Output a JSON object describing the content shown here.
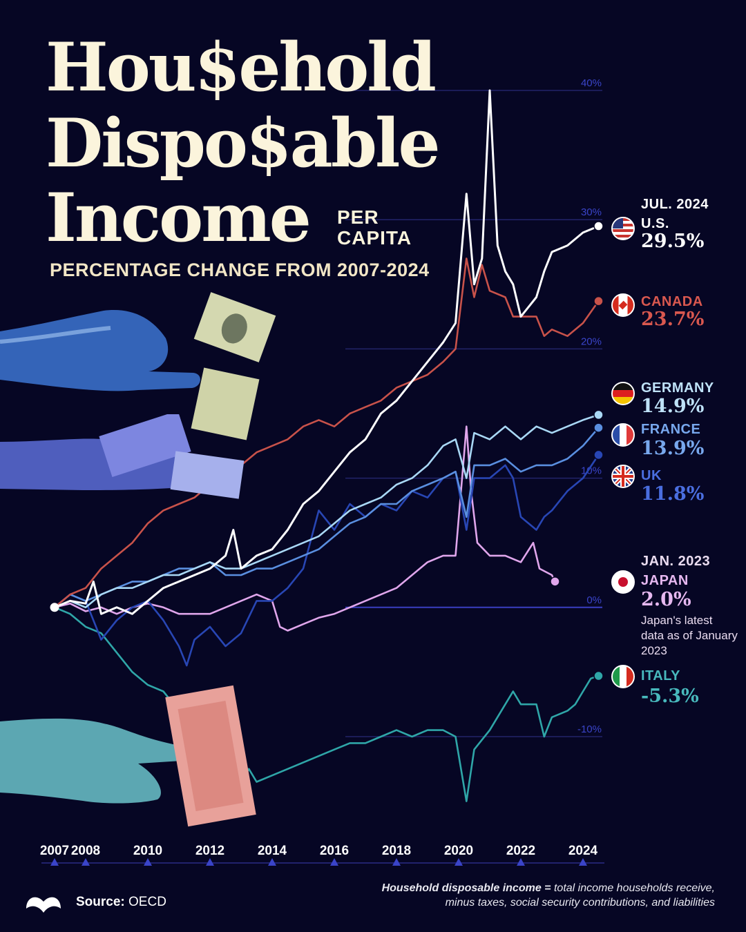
{
  "title": {
    "line1": "Hou$ehold",
    "line2": "Dispo$able",
    "line3": "Income",
    "per_capita": [
      "PER",
      "CAPITA"
    ],
    "subtitle": "PERCENTAGE CHANGE FROM 2007-2024"
  },
  "colors": {
    "background": "#060624",
    "us": "#ffffff",
    "canada": "#c8524a",
    "germany": "#a9d8f5",
    "france": "#5a8fe0",
    "uk": "#2846b4",
    "japan": "#e0a6ec",
    "italy": "#2fa6a8",
    "title": "#fbf4dc"
  },
  "labels": {
    "us": {
      "date": "JUL. 2024",
      "name": "U.S.",
      "value": "29.5%",
      "flag": "us-flag-icon"
    },
    "canada": {
      "name": "CANADA",
      "value": "23.7%",
      "flag": "canada-flag-icon"
    },
    "germany": {
      "name": "GERMANY",
      "value": "14.9%",
      "flag": "germany-flag-icon"
    },
    "france": {
      "name": "FRANCE",
      "value": "13.9%",
      "flag": "france-flag-icon"
    },
    "uk": {
      "name": "UK",
      "value": "11.8%",
      "flag": "uk-flag-icon"
    },
    "japan": {
      "date": "JAN. 2023",
      "name": "JAPAN",
      "value": "2.0%",
      "note": "Japan's latest data as of January 2023",
      "flag": "japan-flag-icon"
    },
    "italy": {
      "name": "ITALY",
      "value": "-5.3%",
      "flag": "italy-flag-icon"
    }
  },
  "footer": {
    "source_label": "Source:",
    "source": "OECD",
    "definition_term": "Household disposable income =",
    "definition_text": "total income households receive,",
    "definition_line2": "minus taxes, social security contributions, and liabilities"
  },
  "chart_data": {
    "type": "line",
    "xlim": [
      2007,
      2024.6
    ],
    "ylim": [
      -15,
      43
    ],
    "y_ticks": [
      -10,
      0,
      10,
      20,
      30,
      40
    ],
    "y_tick_labels": [
      "-10%",
      "0%",
      "10%",
      "20%",
      "30%",
      "40%"
    ],
    "x_ticks": [
      2007,
      2008,
      2010,
      2012,
      2014,
      2016,
      2018,
      2020,
      2022,
      2024
    ],
    "x_tick_labels": [
      "2007",
      "2008",
      "2010",
      "2012",
      "2014",
      "2016",
      "2018",
      "2020",
      "2022",
      "2024"
    ],
    "grid": true,
    "series": [
      {
        "key": "italy",
        "name": "ITALY",
        "points": [
          [
            2007,
            0
          ],
          [
            2007.5,
            -0.5
          ],
          [
            2008,
            -1.5
          ],
          [
            2008.5,
            -2
          ],
          [
            2009,
            -3.5
          ],
          [
            2009.5,
            -5
          ],
          [
            2010,
            -6
          ],
          [
            2010.5,
            -6.5
          ],
          [
            2011,
            -8
          ],
          [
            2011.5,
            -9
          ],
          [
            2012,
            -10.5
          ],
          [
            2012.5,
            -12
          ],
          [
            2013,
            -13.5
          ],
          [
            2013.25,
            -12.5
          ],
          [
            2013.5,
            -13.5
          ],
          [
            2014,
            -13
          ],
          [
            2014.5,
            -12.5
          ],
          [
            2015,
            -12
          ],
          [
            2015.5,
            -11.5
          ],
          [
            2016,
            -11
          ],
          [
            2016.5,
            -10.5
          ],
          [
            2017,
            -10.5
          ],
          [
            2017.5,
            -10
          ],
          [
            2018,
            -9.5
          ],
          [
            2018.5,
            -10
          ],
          [
            2019,
            -9.5
          ],
          [
            2019.5,
            -9.5
          ],
          [
            2019.9,
            -10
          ],
          [
            2020.25,
            -15
          ],
          [
            2020.5,
            -11
          ],
          [
            2021,
            -9.5
          ],
          [
            2021.5,
            -7.5
          ],
          [
            2021.75,
            -6.5
          ],
          [
            2022,
            -7.5
          ],
          [
            2022.5,
            -7.5
          ],
          [
            2022.75,
            -10
          ],
          [
            2023,
            -8.5
          ],
          [
            2023.5,
            -8
          ],
          [
            2023.75,
            -7.5
          ],
          [
            2024,
            -6.5
          ],
          [
            2024.25,
            -5.5
          ],
          [
            2024.5,
            -5.3
          ]
        ]
      },
      {
        "key": "japan",
        "name": "JAPAN",
        "points": [
          [
            2007,
            0
          ],
          [
            2007.5,
            0.3
          ],
          [
            2008,
            -0.3
          ],
          [
            2008.5,
            0
          ],
          [
            2009,
            -0.5
          ],
          [
            2009.5,
            0
          ],
          [
            2010,
            0.3
          ],
          [
            2010.5,
            0
          ],
          [
            2011,
            -0.5
          ],
          [
            2011.5,
            -0.5
          ],
          [
            2012,
            -0.5
          ],
          [
            2012.5,
            0
          ],
          [
            2013,
            0.5
          ],
          [
            2013.5,
            1
          ],
          [
            2014,
            0.5
          ],
          [
            2014.25,
            -1.5
          ],
          [
            2014.5,
            -1.8
          ],
          [
            2015,
            -1.3
          ],
          [
            2015.5,
            -0.8
          ],
          [
            2016,
            -0.5
          ],
          [
            2016.5,
            0
          ],
          [
            2017,
            0.5
          ],
          [
            2017.5,
            1
          ],
          [
            2018,
            1.5
          ],
          [
            2018.5,
            2.5
          ],
          [
            2019,
            3.5
          ],
          [
            2019.5,
            4
          ],
          [
            2019.9,
            4
          ],
          [
            2020.25,
            14
          ],
          [
            2020.4,
            9
          ],
          [
            2020.6,
            5
          ],
          [
            2021,
            4
          ],
          [
            2021.5,
            4
          ],
          [
            2022,
            3.5
          ],
          [
            2022.4,
            5
          ],
          [
            2022.6,
            3
          ],
          [
            2023,
            2.5
          ],
          [
            2023.1,
            2
          ]
        ]
      },
      {
        "key": "uk",
        "name": "UK",
        "points": [
          [
            2007,
            0
          ],
          [
            2007.5,
            1
          ],
          [
            2008,
            0.5
          ],
          [
            2008.5,
            -2.5
          ],
          [
            2009,
            -1
          ],
          [
            2009.5,
            0
          ],
          [
            2010,
            0.5
          ],
          [
            2010.5,
            -1
          ],
          [
            2011,
            -3
          ],
          [
            2011.25,
            -4.5
          ],
          [
            2011.5,
            -2.5
          ],
          [
            2012,
            -1.5
          ],
          [
            2012.5,
            -3
          ],
          [
            2013,
            -2
          ],
          [
            2013.5,
            0.5
          ],
          [
            2014,
            0.5
          ],
          [
            2014.5,
            1.5
          ],
          [
            2015,
            3
          ],
          [
            2015.5,
            7.5
          ],
          [
            2016,
            6
          ],
          [
            2016.5,
            8
          ],
          [
            2017,
            7
          ],
          [
            2017.5,
            8
          ],
          [
            2018,
            7.5
          ],
          [
            2018.5,
            9
          ],
          [
            2019,
            8.5
          ],
          [
            2019.5,
            10
          ],
          [
            2019.9,
            10.5
          ],
          [
            2020.25,
            6
          ],
          [
            2020.5,
            10
          ],
          [
            2021,
            10
          ],
          [
            2021.5,
            11
          ],
          [
            2021.75,
            10
          ],
          [
            2022,
            7
          ],
          [
            2022.5,
            6
          ],
          [
            2022.75,
            7
          ],
          [
            2023,
            7.5
          ],
          [
            2023.5,
            9
          ],
          [
            2024,
            10
          ],
          [
            2024.5,
            11.8
          ]
        ]
      },
      {
        "key": "france",
        "name": "FRANCE",
        "points": [
          [
            2007,
            0
          ],
          [
            2007.5,
            1
          ],
          [
            2008,
            0.5
          ],
          [
            2008.5,
            1
          ],
          [
            2009,
            1.5
          ],
          [
            2009.5,
            2
          ],
          [
            2010,
            2
          ],
          [
            2010.5,
            2.5
          ],
          [
            2011,
            3
          ],
          [
            2011.5,
            3
          ],
          [
            2012,
            3.5
          ],
          [
            2012.5,
            2.5
          ],
          [
            2013,
            2.5
          ],
          [
            2013.5,
            3
          ],
          [
            2014,
            3
          ],
          [
            2014.5,
            3.5
          ],
          [
            2015,
            4
          ],
          [
            2015.5,
            4.5
          ],
          [
            2016,
            5.5
          ],
          [
            2016.5,
            6.5
          ],
          [
            2017,
            7
          ],
          [
            2017.5,
            8
          ],
          [
            2018,
            8
          ],
          [
            2018.5,
            9
          ],
          [
            2019,
            9.5
          ],
          [
            2019.5,
            10
          ],
          [
            2019.9,
            10.5
          ],
          [
            2020.25,
            7
          ],
          [
            2020.5,
            11
          ],
          [
            2021,
            11
          ],
          [
            2021.5,
            11.5
          ],
          [
            2022,
            10.5
          ],
          [
            2022.5,
            11
          ],
          [
            2023,
            11
          ],
          [
            2023.5,
            11.5
          ],
          [
            2024,
            12.5
          ],
          [
            2024.5,
            13.9
          ]
        ]
      },
      {
        "key": "germany",
        "name": "GERMANY",
        "points": [
          [
            2007,
            0
          ],
          [
            2007.5,
            0.5
          ],
          [
            2008,
            0
          ],
          [
            2008.5,
            1
          ],
          [
            2009,
            1.5
          ],
          [
            2009.5,
            1.5
          ],
          [
            2010,
            2
          ],
          [
            2010.5,
            2.5
          ],
          [
            2011,
            2.5
          ],
          [
            2011.5,
            3
          ],
          [
            2012,
            3.5
          ],
          [
            2012.5,
            3
          ],
          [
            2013,
            3
          ],
          [
            2013.5,
            3.5
          ],
          [
            2014,
            4
          ],
          [
            2014.5,
            4.5
          ],
          [
            2015,
            5
          ],
          [
            2015.5,
            5.5
          ],
          [
            2016,
            6.5
          ],
          [
            2016.5,
            7.5
          ],
          [
            2017,
            8
          ],
          [
            2017.5,
            8.5
          ],
          [
            2018,
            9.5
          ],
          [
            2018.5,
            10
          ],
          [
            2019,
            11
          ],
          [
            2019.5,
            12.5
          ],
          [
            2019.9,
            13
          ],
          [
            2020.25,
            10
          ],
          [
            2020.5,
            13.5
          ],
          [
            2021,
            13
          ],
          [
            2021.5,
            14
          ],
          [
            2022,
            13
          ],
          [
            2022.5,
            14
          ],
          [
            2023,
            13.5
          ],
          [
            2023.5,
            14
          ],
          [
            2024,
            14.5
          ],
          [
            2024.5,
            14.9
          ]
        ]
      },
      {
        "key": "canada",
        "name": "CANADA",
        "points": [
          [
            2007,
            0
          ],
          [
            2007.5,
            1
          ],
          [
            2008,
            1.5
          ],
          [
            2008.5,
            3
          ],
          [
            2009,
            4
          ],
          [
            2009.5,
            5
          ],
          [
            2010,
            6.5
          ],
          [
            2010.5,
            7.5
          ],
          [
            2011,
            8
          ],
          [
            2011.5,
            8.5
          ],
          [
            2012,
            9.5
          ],
          [
            2012.5,
            10
          ],
          [
            2013,
            11
          ],
          [
            2013.5,
            12
          ],
          [
            2014,
            12.5
          ],
          [
            2014.5,
            13
          ],
          [
            2015,
            14
          ],
          [
            2015.5,
            14.5
          ],
          [
            2016,
            14
          ],
          [
            2016.5,
            15
          ],
          [
            2017,
            15.5
          ],
          [
            2017.5,
            16
          ],
          [
            2018,
            17
          ],
          [
            2018.5,
            17.5
          ],
          [
            2019,
            18
          ],
          [
            2019.5,
            19
          ],
          [
            2019.9,
            20
          ],
          [
            2020.25,
            27
          ],
          [
            2020.5,
            24
          ],
          [
            2020.75,
            26.5
          ],
          [
            2021,
            24.5
          ],
          [
            2021.5,
            24
          ],
          [
            2021.75,
            22.5
          ],
          [
            2022,
            22.5
          ],
          [
            2022.5,
            22.5
          ],
          [
            2022.75,
            21
          ],
          [
            2023,
            21.5
          ],
          [
            2023.5,
            21
          ],
          [
            2024,
            22
          ],
          [
            2024.5,
            23.7
          ]
        ]
      },
      {
        "key": "us",
        "name": "U.S.",
        "points": [
          [
            2007,
            0
          ],
          [
            2007.5,
            0.5
          ],
          [
            2008,
            0.3
          ],
          [
            2008.25,
            2
          ],
          [
            2008.5,
            -0.5
          ],
          [
            2009,
            0
          ],
          [
            2009.5,
            -0.5
          ],
          [
            2010,
            0.5
          ],
          [
            2010.5,
            1.5
          ],
          [
            2011,
            2
          ],
          [
            2011.5,
            2.5
          ],
          [
            2012,
            3
          ],
          [
            2012.5,
            4
          ],
          [
            2012.75,
            6
          ],
          [
            2013,
            3
          ],
          [
            2013.5,
            4
          ],
          [
            2014,
            4.5
          ],
          [
            2014.5,
            6
          ],
          [
            2015,
            8
          ],
          [
            2015.5,
            9
          ],
          [
            2016,
            10.5
          ],
          [
            2016.5,
            12
          ],
          [
            2017,
            13
          ],
          [
            2017.5,
            15
          ],
          [
            2018,
            16
          ],
          [
            2018.5,
            17.5
          ],
          [
            2019,
            19
          ],
          [
            2019.5,
            20.5
          ],
          [
            2019.9,
            22
          ],
          [
            2020.25,
            32
          ],
          [
            2020.5,
            25
          ],
          [
            2020.75,
            27
          ],
          [
            2021,
            40
          ],
          [
            2021.25,
            28
          ],
          [
            2021.5,
            26
          ],
          [
            2021.75,
            25
          ],
          [
            2022,
            22.5
          ],
          [
            2022.5,
            24
          ],
          [
            2022.75,
            26
          ],
          [
            2023,
            27.5
          ],
          [
            2023.5,
            28
          ],
          [
            2024,
            29
          ],
          [
            2024.5,
            29.5
          ]
        ]
      }
    ]
  }
}
